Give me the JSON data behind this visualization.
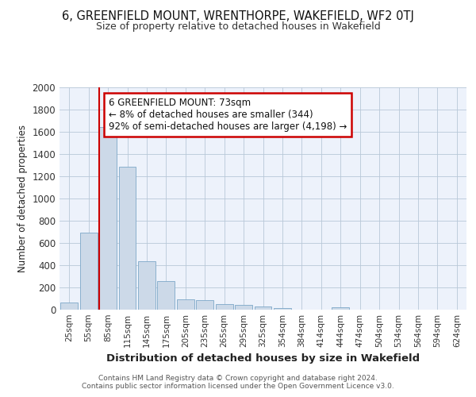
{
  "title": "6, GREENFIELD MOUNT, WRENTHORPE, WAKEFIELD, WF2 0TJ",
  "subtitle": "Size of property relative to detached houses in Wakefield",
  "xlabel": "Distribution of detached houses by size in Wakefield",
  "ylabel": "Number of detached properties",
  "categories": [
    "25sqm",
    "55sqm",
    "85sqm",
    "115sqm",
    "145sqm",
    "175sqm",
    "205sqm",
    "235sqm",
    "265sqm",
    "295sqm",
    "325sqm",
    "354sqm",
    "384sqm",
    "414sqm",
    "444sqm",
    "474sqm",
    "504sqm",
    "534sqm",
    "564sqm",
    "594sqm",
    "624sqm"
  ],
  "values": [
    65,
    690,
    1640,
    1285,
    435,
    255,
    90,
    85,
    50,
    40,
    30,
    15,
    0,
    0,
    20,
    0,
    0,
    0,
    0,
    0,
    0
  ],
  "bar_color": "#ccd9e8",
  "bar_edge_color": "#7da8c8",
  "marker_line_color": "#cc0000",
  "annotation_text": "6 GREENFIELD MOUNT: 73sqm\n← 8% of detached houses are smaller (344)\n92% of semi-detached houses are larger (4,198) →",
  "annotation_box_color": "#ffffff",
  "annotation_box_edge": "#cc0000",
  "footer1": "Contains HM Land Registry data © Crown copyright and database right 2024.",
  "footer2": "Contains public sector information licensed under the Open Government Licence v3.0.",
  "ylim": [
    0,
    2000
  ],
  "yticks": [
    0,
    200,
    400,
    600,
    800,
    1000,
    1200,
    1400,
    1600,
    1800,
    2000
  ],
  "plot_bg_color": "#edf2fb",
  "fig_bg_color": "#ffffff",
  "marker_bin_index": 2
}
